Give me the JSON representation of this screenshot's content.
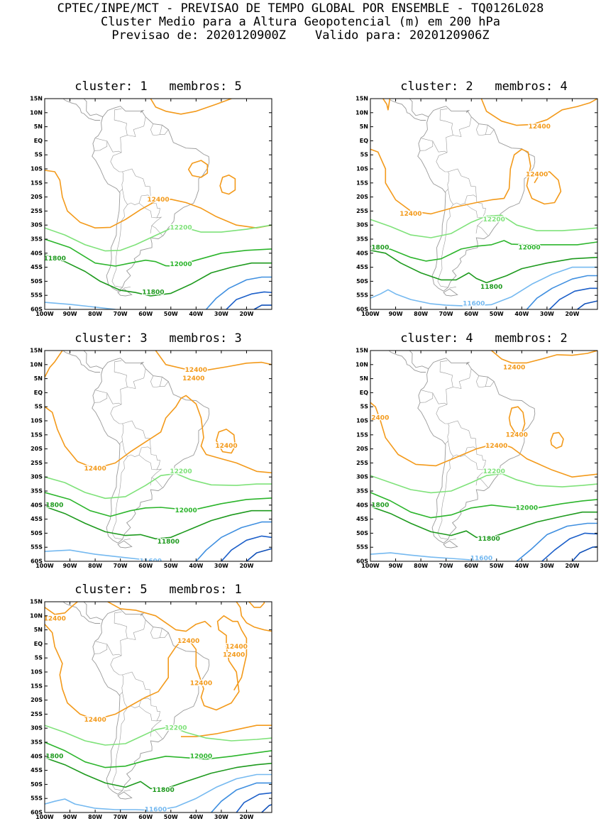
{
  "header": {
    "line1": "CPTEC/INPE/MCT - PREVISAO DE TEMPO GLOBAL POR ENSEMBLE - TQ0126L028",
    "line2": "Cluster Medio para a Altura Geopotencial (m) em 200 hPa",
    "line3": "Previsao de: 2020120900Z    Valido para: 2020120906Z"
  },
  "axes": {
    "lat_labels": [
      "15N",
      "10N",
      "5N",
      "EQ",
      "5S",
      "10S",
      "15S",
      "20S",
      "25S",
      "30S",
      "35S",
      "40S",
      "45S",
      "50S",
      "55S",
      "60S"
    ],
    "lon_labels": [
      "100W",
      "90W",
      "80W",
      "70W",
      "60W",
      "50W",
      "40W",
      "30W",
      "20W"
    ],
    "lat_range": [
      -60,
      15
    ],
    "lon_range": [
      -100,
      -10
    ]
  },
  "colors": {
    "c12400": "#f39a1b",
    "c12200": "#7fe27a",
    "c12000": "#2cb52c",
    "c11800": "#1e9a1e",
    "c11600": "#75b9f0",
    "c11400": "#3f8fe0",
    "c11200": "#1c5fc9",
    "coast": "#9a9a9a"
  },
  "panels": [
    {
      "title": "cluster: 1   membros: 5",
      "labels": [
        {
          "text": "12400",
          "lon": -55,
          "lat": -21,
          "cls": "c12400"
        },
        {
          "text": "12200",
          "lon": -46,
          "lat": -31,
          "cls": "c12200"
        },
        {
          "text": "12000",
          "lon": -46,
          "lat": -44,
          "cls": "c12000"
        },
        {
          "text": "11800",
          "lon": -96,
          "lat": -42,
          "cls": "c11800"
        },
        {
          "text": "11800",
          "lon": -57,
          "lat": -54,
          "cls": "c11800"
        }
      ]
    },
    {
      "title": "cluster: 2   membros: 4",
      "labels": [
        {
          "text": "12400",
          "lon": -33,
          "lat": 5,
          "cls": "c12400"
        },
        {
          "text": "12400",
          "lon": -34,
          "lat": -12,
          "cls": "c12400"
        },
        {
          "text": "12400",
          "lon": -84,
          "lat": -26,
          "cls": "c12400"
        },
        {
          "text": "12200",
          "lon": -51,
          "lat": -28,
          "cls": "c12200"
        },
        {
          "text": "12000",
          "lon": -37,
          "lat": -38,
          "cls": "c12000"
        },
        {
          "text": "11800",
          "lon": -97,
          "lat": -38,
          "cls": "c11800"
        },
        {
          "text": "11800",
          "lon": -52,
          "lat": -52,
          "cls": "c11800"
        },
        {
          "text": "11600",
          "lon": -59,
          "lat": -58,
          "cls": "c11600"
        }
      ]
    },
    {
      "title": "cluster: 3   membros: 3",
      "labels": [
        {
          "text": "12400",
          "lon": -40,
          "lat": 8,
          "cls": "c12400"
        },
        {
          "text": "12400",
          "lon": -41,
          "lat": 5,
          "cls": "c12400"
        },
        {
          "text": "12400",
          "lon": -28,
          "lat": -19,
          "cls": "c12400"
        },
        {
          "text": "12400",
          "lon": -80,
          "lat": -27,
          "cls": "c12400"
        },
        {
          "text": "12200",
          "lon": -46,
          "lat": -28,
          "cls": "c12200"
        },
        {
          "text": "12000",
          "lon": -44,
          "lat": -42,
          "cls": "c12000"
        },
        {
          "text": "11800",
          "lon": -97,
          "lat": -40,
          "cls": "c11800"
        },
        {
          "text": "11800",
          "lon": -51,
          "lat": -53,
          "cls": "c11800"
        },
        {
          "text": "11600",
          "lon": -58,
          "lat": -60,
          "cls": "c11600"
        }
      ]
    },
    {
      "title": "cluster: 4   membros: 2",
      "labels": [
        {
          "text": "12400",
          "lon": -43,
          "lat": 9,
          "cls": "c12400"
        },
        {
          "text": "12400",
          "lon": -97,
          "lat": -9,
          "cls": "c12400"
        },
        {
          "text": "12400",
          "lon": -42,
          "lat": -15,
          "cls": "c12400"
        },
        {
          "text": "12400",
          "lon": -50,
          "lat": -19,
          "cls": "c12400"
        },
        {
          "text": "12200",
          "lon": -51,
          "lat": -28,
          "cls": "c12200"
        },
        {
          "text": "12000",
          "lon": -38,
          "lat": -41,
          "cls": "c12000"
        },
        {
          "text": "11800",
          "lon": -97,
          "lat": -40,
          "cls": "c11800"
        },
        {
          "text": "11800",
          "lon": -53,
          "lat": -52,
          "cls": "c11800"
        },
        {
          "text": "11600",
          "lon": -56,
          "lat": -59,
          "cls": "c11600"
        }
      ]
    },
    {
      "title": "cluster: 5   membros: 1",
      "labels": [
        {
          "text": "12400",
          "lon": -96,
          "lat": 9,
          "cls": "c12400"
        },
        {
          "text": "12400",
          "lon": -43,
          "lat": 1,
          "cls": "c12400"
        },
        {
          "text": "12400",
          "lon": -24,
          "lat": -1,
          "cls": "c12400"
        },
        {
          "text": "12400",
          "lon": -25,
          "lat": -4,
          "cls": "c12400"
        },
        {
          "text": "12400",
          "lon": -38,
          "lat": -14,
          "cls": "c12400"
        },
        {
          "text": "12400",
          "lon": -80,
          "lat": -27,
          "cls": "c12400"
        },
        {
          "text": "12200",
          "lon": -48,
          "lat": -30,
          "cls": "c12200"
        },
        {
          "text": "12000",
          "lon": -38,
          "lat": -40,
          "cls": "c12000"
        },
        {
          "text": "11800",
          "lon": -97,
          "lat": -40,
          "cls": "c11800"
        },
        {
          "text": "11800",
          "lon": -53,
          "lat": -52,
          "cls": "c11800"
        },
        {
          "text": "11600",
          "lon": -56,
          "lat": -59,
          "cls": "c11600"
        }
      ]
    }
  ]
}
